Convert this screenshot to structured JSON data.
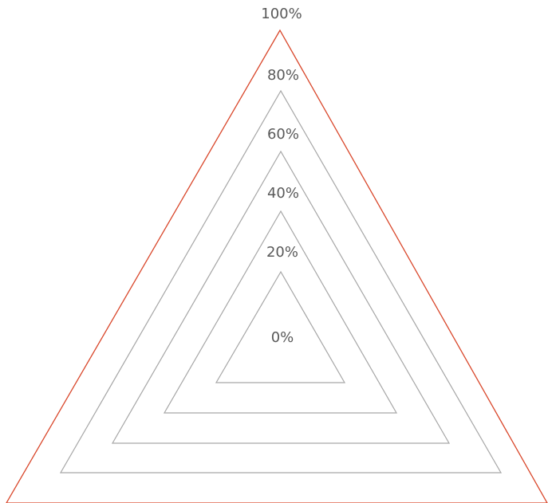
{
  "diagram": {
    "levels": [
      {
        "label": "0%",
        "value": 0
      },
      {
        "label": "20%",
        "value": 20
      },
      {
        "label": "40%",
        "value": 40
      },
      {
        "label": "60%",
        "value": 60
      },
      {
        "label": "80%",
        "value": 80
      },
      {
        "label": "100%",
        "value": 100
      }
    ],
    "colors": {
      "ring": "#a6a6a6",
      "outer_ring": "#d9472b",
      "label": "#595959",
      "background": "#ffffff"
    }
  }
}
